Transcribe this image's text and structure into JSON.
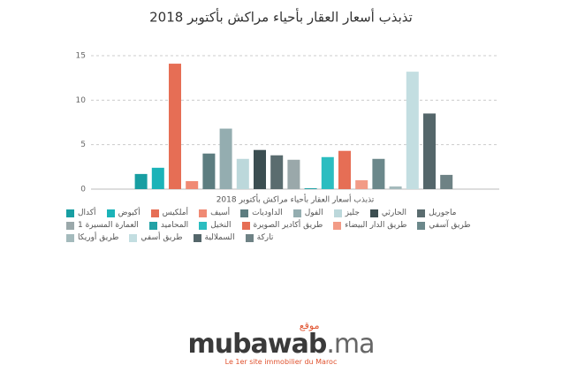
{
  "chart_data": {
    "type": "bar",
    "title": "تذبذب أسعار العقار بأحياء مراكش بأكتوبر 2018",
    "x_label": "تذبذب أسعار العقار بأحياء مراكش بأكتوبر 2018",
    "categories": [
      "أكدال",
      "أكيوض",
      "أملكيس",
      "أسيف",
      "الداوديات",
      "الفول",
      "جليز",
      "الحارثي",
      "ماجوريل",
      "العمارة المسيرة 1",
      "المحاميد",
      "النخيل",
      "طريق أكادير الصويرة",
      "طريق الدار البيضاء",
      "طريق آسفي",
      "طريق أوريكا",
      "طريق أسفي",
      "السملالية",
      "تاركة"
    ],
    "values": [
      1.7,
      2.4,
      14.1,
      0.9,
      4.0,
      6.8,
      3.4,
      4.4,
      3.8,
      3.3,
      0.1,
      3.6,
      4.3,
      1.0,
      3.4,
      0.3,
      13.2,
      8.5,
      1.6
    ],
    "colors": [
      "#189ea2",
      "#1bb3b8",
      "#e66e55",
      "#f08a74",
      "#5d7d80",
      "#94adb0",
      "#bcd8db",
      "#3c4e51",
      "#5a6c6f",
      "#9aa8aa",
      "#22a2a6",
      "#2bbdc0",
      "#e66e55",
      "#f29b86",
      "#6b888b",
      "#a4babc",
      "#c3dee1",
      "#54666a",
      "#6e8285"
    ],
    "ylim": [
      0,
      15
    ],
    "yticks": [
      0,
      5,
      10,
      15
    ],
    "grid": true
  },
  "branding": {
    "tag": "موقع",
    "logo": "mubawab",
    "logo_suffix": ".ma",
    "tagline": "Le 1er site immobilier du Maroc"
  }
}
